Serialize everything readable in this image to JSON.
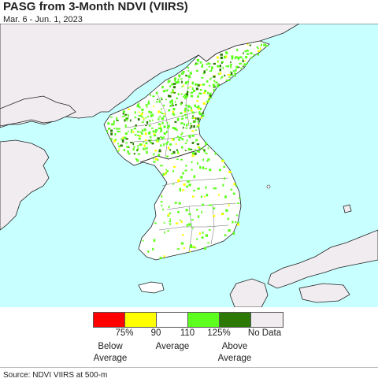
{
  "header": {
    "title": "PASG from 3-Month NDVI (VIIRS)",
    "subtitle": "Mar. 6 - Jun. 1, 2023"
  },
  "map": {
    "water_color": "#c8ffff",
    "other_land_color": "#f0ecf0",
    "region_base_color": "#ffffff",
    "speckle_colors": [
      "#5cff1e",
      "#2c7a05",
      "#ffff00",
      "#ff0000"
    ]
  },
  "legend": {
    "colors": [
      "#ff0000",
      "#ffff00",
      "#ffffff",
      "#5cff1e",
      "#2c7a05",
      "#f0ecf0"
    ],
    "ticks": [
      "75%",
      "90",
      "110",
      "125%",
      "No Data"
    ],
    "categories": {
      "below": "Below\nAverage",
      "average": "Average",
      "above": "Above\nAverage"
    }
  },
  "footer": {
    "source": "Source: NDVI VIIRS at 500-m"
  }
}
